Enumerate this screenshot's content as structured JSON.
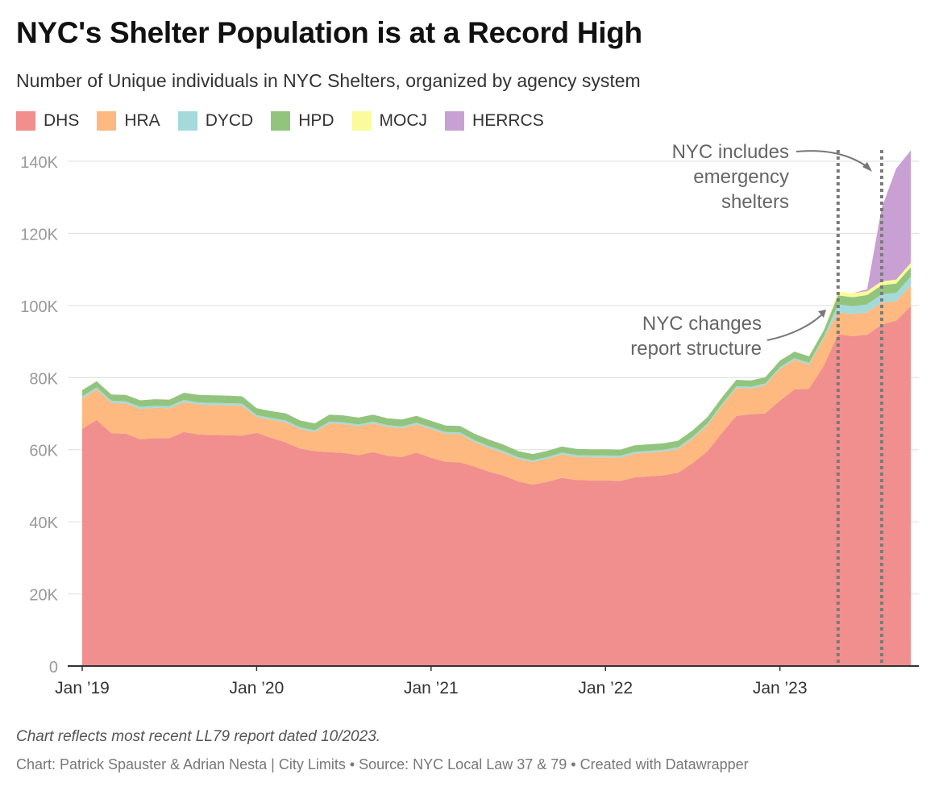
{
  "title": "NYC's Shelter Population is at a Record High",
  "subtitle": "Number of Unique individuals in NYC Shelters, organized by agency system",
  "note": "Chart reflects most recent LL79 report dated 10/2023.",
  "credit": "Chart: Patrick Spauster & Adrian Nesta | City Limits • Source: NYC Local Law 37 & 79 • Created with Datawrapper",
  "legend": [
    {
      "name": "DHS",
      "color": "#f08f8d"
    },
    {
      "name": "HRA",
      "color": "#fdb97f"
    },
    {
      "name": "DYCD",
      "color": "#a5dada"
    },
    {
      "name": "HPD",
      "color": "#93c47d"
    },
    {
      "name": "MOCJ",
      "color": "#fbfb9c"
    },
    {
      "name": "HERRCS",
      "color": "#c9a0d3"
    }
  ],
  "annotations": {
    "emergency_line1": "NYC includes",
    "emergency_line2": "emergency",
    "emergency_line3": "shelters",
    "report_line1": "NYC changes",
    "report_line2": "report structure"
  },
  "chart_data": {
    "type": "area",
    "stacked": true,
    "ylim": [
      0,
      140000
    ],
    "yticks": [
      0,
      20000,
      40000,
      60000,
      80000,
      100000,
      120000,
      140000
    ],
    "ytick_labels": [
      "0",
      "20K",
      "40K",
      "60K",
      "80K",
      "100K",
      "120K",
      "140K"
    ],
    "xlim": [
      "2019-01",
      "2023-10"
    ],
    "xticks": [
      "2019-01",
      "2020-01",
      "2021-01",
      "2022-01",
      "2023-01"
    ],
    "xtick_labels": [
      "Jan ’19",
      "Jan ’20",
      "Jan ’21",
      "Jan ’22",
      "Jan ’23"
    ],
    "markers": [
      "2023-05",
      "2023-08"
    ],
    "x": [
      "2019-01",
      "2019-02",
      "2019-03",
      "2019-04",
      "2019-05",
      "2019-06",
      "2019-07",
      "2019-08",
      "2019-09",
      "2019-10",
      "2019-11",
      "2019-12",
      "2020-01",
      "2020-02",
      "2020-03",
      "2020-04",
      "2020-05",
      "2020-06",
      "2020-07",
      "2020-08",
      "2020-09",
      "2020-10",
      "2020-11",
      "2020-12",
      "2021-01",
      "2021-02",
      "2021-03",
      "2021-04",
      "2021-05",
      "2021-06",
      "2021-07",
      "2021-08",
      "2021-09",
      "2021-10",
      "2021-11",
      "2021-12",
      "2022-01",
      "2022-02",
      "2022-03",
      "2022-04",
      "2022-05",
      "2022-06",
      "2022-07",
      "2022-08",
      "2022-09",
      "2022-10",
      "2022-11",
      "2022-12",
      "2023-01",
      "2023-02",
      "2023-03",
      "2023-04",
      "2023-05",
      "2023-06",
      "2023-07",
      "2023-08",
      "2023-09",
      "2023-10"
    ],
    "series": [
      {
        "name": "DHS",
        "color": "#f08f8d",
        "values": [
          65800,
          68200,
          64600,
          64400,
          62900,
          63200,
          63200,
          64900,
          64200,
          64100,
          64000,
          63900,
          64700,
          63300,
          62000,
          60300,
          59600,
          59300,
          59100,
          58500,
          59300,
          58300,
          58000,
          59200,
          57800,
          56600,
          56500,
          55300,
          53900,
          52800,
          51200,
          50300,
          51100,
          52200,
          51600,
          51500,
          51500,
          51300,
          52300,
          52600,
          52900,
          53600,
          56300,
          59500,
          64600,
          69400,
          69800,
          70100,
          73600,
          76700,
          76900,
          83200,
          92000,
          91500,
          91900,
          94700,
          95800,
          99800
        ]
      },
      {
        "name": "HRA",
        "color": "#fdb97f",
        "values": [
          8400,
          8500,
          8400,
          8400,
          8400,
          8400,
          8300,
          8300,
          8300,
          8300,
          8300,
          8300,
          4400,
          5000,
          5600,
          5400,
          5300,
          8000,
          8000,
          8000,
          8000,
          8000,
          8000,
          7800,
          7900,
          7800,
          7800,
          6800,
          6600,
          6300,
          6200,
          6300,
          6400,
          6500,
          6400,
          6400,
          6400,
          6500,
          6600,
          6600,
          6600,
          6600,
          6800,
          7200,
          7500,
          7700,
          7200,
          7800,
          8800,
          8200,
          6700,
          7500,
          6100,
          6100,
          6200,
          6100,
          5400,
          5800
        ]
      },
      {
        "name": "DYCD",
        "color": "#a5dada",
        "values": [
          600,
          600,
          600,
          600,
          600,
          600,
          600,
          600,
          600,
          600,
          600,
          600,
          500,
          500,
          500,
          500,
          500,
          500,
          500,
          500,
          500,
          500,
          500,
          500,
          500,
          500,
          500,
          500,
          500,
          500,
          500,
          500,
          500,
          500,
          500,
          500,
          500,
          500,
          500,
          500,
          500,
          500,
          500,
          500,
          500,
          500,
          500,
          500,
          500,
          500,
          500,
          500,
          2200,
          2200,
          2200,
          2300,
          2300,
          2400
        ]
      },
      {
        "name": "HPD",
        "color": "#93c47d",
        "values": [
          1700,
          1700,
          1700,
          1800,
          1800,
          1800,
          1800,
          2000,
          2100,
          2100,
          2100,
          2000,
          1900,
          1900,
          2000,
          1900,
          1900,
          1900,
          1900,
          1900,
          1900,
          1900,
          1900,
          1900,
          1800,
          1800,
          1800,
          1800,
          1800,
          1800,
          1700,
          1700,
          1700,
          1700,
          1700,
          1700,
          1700,
          1700,
          1800,
          1800,
          1800,
          1800,
          1800,
          1800,
          1800,
          1800,
          1700,
          1700,
          1800,
          1800,
          1800,
          1800,
          2500,
          2500,
          2600,
          2500,
          2600,
          2600
        ]
      },
      {
        "name": "MOCJ",
        "color": "#fbfb9c",
        "values": [
          0,
          0,
          0,
          0,
          0,
          0,
          0,
          0,
          0,
          0,
          0,
          0,
          0,
          0,
          0,
          0,
          0,
          0,
          0,
          0,
          0,
          0,
          0,
          0,
          0,
          0,
          0,
          0,
          0,
          0,
          0,
          0,
          0,
          0,
          0,
          0,
          0,
          0,
          0,
          0,
          0,
          0,
          0,
          0,
          0,
          0,
          0,
          0,
          0,
          0,
          0,
          0,
          1100,
          1100,
          1100,
          1100,
          1100,
          1200
        ]
      },
      {
        "name": "HERRCS",
        "color": "#c9a0d3",
        "values": [
          0,
          0,
          0,
          0,
          0,
          0,
          0,
          0,
          0,
          0,
          0,
          0,
          0,
          0,
          0,
          0,
          0,
          0,
          0,
          0,
          0,
          0,
          0,
          0,
          0,
          0,
          0,
          0,
          0,
          0,
          0,
          0,
          0,
          0,
          0,
          0,
          0,
          0,
          0,
          0,
          0,
          0,
          0,
          0,
          0,
          0,
          0,
          0,
          0,
          0,
          0,
          0,
          0,
          0,
          500,
          20300,
          30800,
          31200
        ]
      }
    ]
  }
}
